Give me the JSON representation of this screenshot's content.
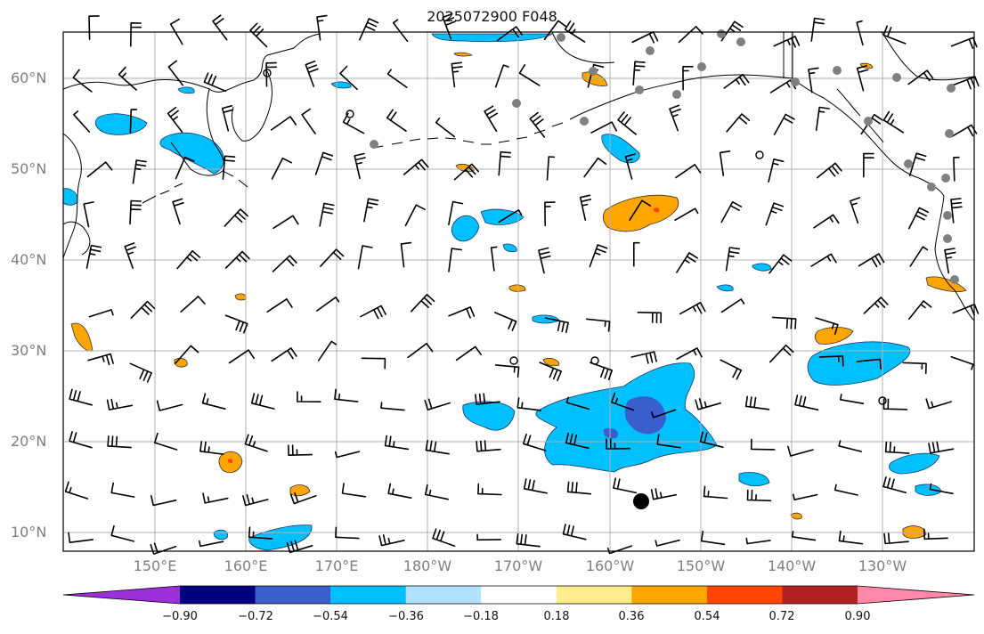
{
  "title": "2025072900 F048",
  "map": {
    "projection": "equirectangular",
    "lon_range": [
      "140°E",
      "117°W"
    ],
    "lat_range": [
      "8°N",
      "65°N"
    ],
    "gridlines": true,
    "lat_labels": [
      "60°N",
      "50°N",
      "40°N",
      "30°N",
      "20°N",
      "10°N"
    ],
    "lon_labels": [
      "150°E",
      "160°E",
      "170°E",
      "180°W",
      "170°W",
      "160°W",
      "150°W",
      "140°W",
      "130°W"
    ]
  },
  "colorbar": {
    "extend": "both",
    "tick_labels": [
      "−0.90",
      "−0.72",
      "−0.54",
      "−0.36",
      "−0.18",
      "0.18",
      "0.36",
      "0.54",
      "0.72",
      "0.90"
    ],
    "under_color": "#9b30d9",
    "over_color": "#ff88aa",
    "colors": [
      "#9932cc",
      "#000080",
      "#3a5fcd",
      "#00bfff",
      "#b0e2ff",
      "#ffffff",
      "#ffec8b",
      "#ffa500",
      "#ff4500",
      "#b22222",
      "#ff88aa"
    ]
  },
  "legend_colors": {
    "negative_light": "#00bfff",
    "negative_mid": "#3a5fcd",
    "positive_light": "#ffa500",
    "positive_mid": "#ff4500",
    "coast": "#000000",
    "grid": "#b0b0b0",
    "station_marker": "#808080"
  }
}
